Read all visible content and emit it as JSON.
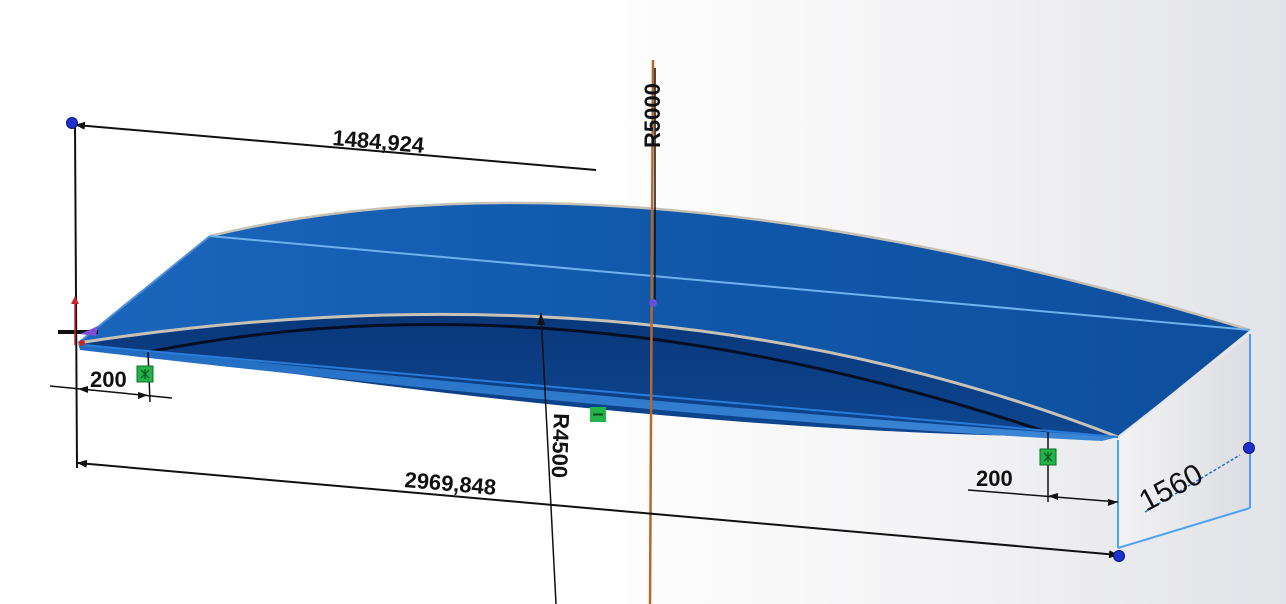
{
  "dimensions": {
    "half_length": "1484,924",
    "total_length": "2969,848",
    "offset_left": "200",
    "offset_right": "200",
    "width": "1560",
    "outer_radius": "R5000",
    "inner_radius": "R4500"
  },
  "colors": {
    "top_face": "#1157a8",
    "front_face": "#0b3d86",
    "side_face": "#e9eaec",
    "edge_highlight": "#c8c2b6",
    "construction_line": "#b5682a",
    "dimension_line": "#111111",
    "relation_icon": "#22b34a",
    "sketch_point": "#1f2fd0"
  },
  "icons": [
    "relation-fixed-icon",
    "relation-horizontal-icon",
    "sketch-point-icon"
  ]
}
